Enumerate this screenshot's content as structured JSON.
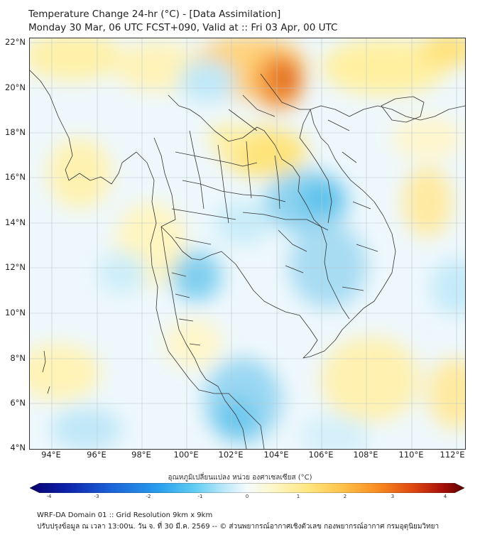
{
  "header": {
    "title_line1": "Temperature Change 24-hr (°C) - [Data Assimilation]",
    "title_line2": "Monday 30 Mar, 06 UTC FCST+090, Valid at :: Fri 03 Apr, 00 UTC"
  },
  "map": {
    "lat_labels": [
      "22°N",
      "20°N",
      "18°N",
      "16°N",
      "14°N",
      "12°N",
      "10°N",
      "8°N",
      "6°N",
      "4°N"
    ],
    "lon_labels": [
      "94°E",
      "96°E",
      "98°E",
      "100°E",
      "102°E",
      "104°E",
      "106°E",
      "108°E",
      "110°E",
      "112°E"
    ],
    "colors": {
      "frame": "#333333",
      "border_lines": "#333333",
      "warm_strong": "#e2691a",
      "warm": "#ffd27a",
      "warm_light": "#fff2b5",
      "cool_light": "#d9f1fb",
      "cool": "#8fd3f0",
      "cool_strong": "#3bb3e6"
    }
  },
  "colorbar": {
    "title": "อุณหภูมิเปลี่ยนแปลง หน่วย องศาเซลเซียส (°C)",
    "ticks": [
      "-4",
      "-3",
      "-2",
      "-1",
      "0",
      "1",
      "2",
      "3",
      "4"
    ],
    "min": -4,
    "max": 4,
    "colors": [
      "#08006e",
      "#0d1fa8",
      "#1a5ed6",
      "#2aa0ee",
      "#62cdf3",
      "#bfe9f9",
      "#f4fbfd",
      "#fdf7c8",
      "#ffe680",
      "#ffc24a",
      "#f98c21",
      "#e04811",
      "#a8100a",
      "#5e0000"
    ]
  },
  "footer": {
    "line1": "WRF-DA Domain 01 :: Grid Resolution 9km x 9km",
    "line2": "ปรับปรุงข้อมูล ณ เวลา 13:00น. วัน จ. ที่ 30 มี.ค. 2569 -- © ส่วนพยากรณ์อากาศเชิงตัวเลข กองพยากรณ์อากาศ กรมอุตุนิยมวิทยา"
  }
}
